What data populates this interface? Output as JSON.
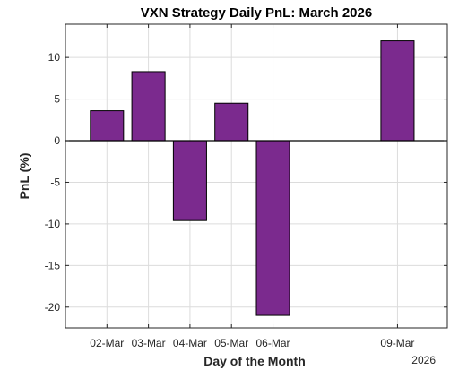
{
  "chart_data": {
    "type": "bar",
    "title": "VXN Strategy Daily PnL: March 2026",
    "xlabel": "Day of the Month",
    "ylabel": "PnL (%)",
    "x_secondary_label": "2026",
    "categories": [
      "02-Mar",
      "03-Mar",
      "04-Mar",
      "05-Mar",
      "06-Mar",
      "09-Mar"
    ],
    "day_numbers": [
      2,
      3,
      4,
      5,
      6,
      9
    ],
    "values": [
      3.6,
      8.3,
      -9.6,
      4.5,
      -21.0,
      12.0
    ],
    "xlim": [
      1.0,
      10.2
    ],
    "ylim": [
      -22.5,
      14
    ],
    "yticks": [
      -20,
      -15,
      -10,
      -5,
      0,
      5,
      10
    ],
    "ytick_labels": [
      "-20",
      "-15",
      "-10",
      "-5",
      "0",
      "5",
      "10"
    ],
    "grid": true,
    "colors": {
      "bar": "#7b2a8e",
      "edge": "#000000"
    }
  }
}
